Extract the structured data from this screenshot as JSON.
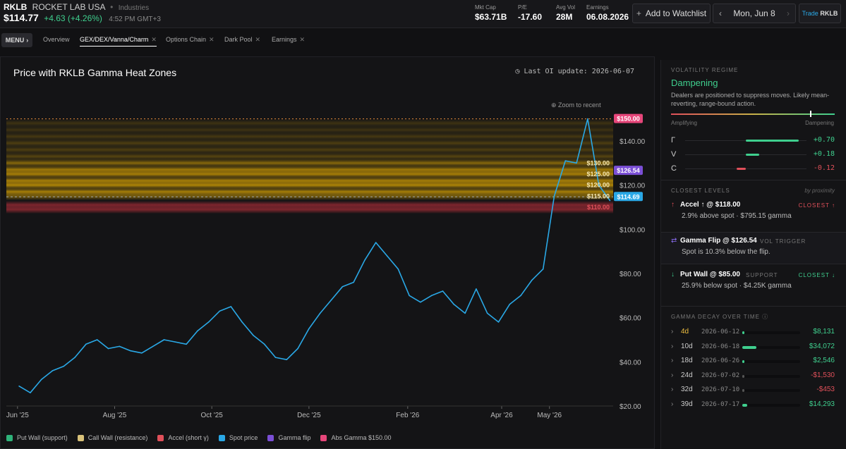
{
  "header": {
    "symbol": "RKLB",
    "name": "ROCKET LAB USA",
    "sector": "Industries",
    "price": "$114.77",
    "change": "+4.63 (+4.26%)",
    "time": "4:52 PM GMT+3",
    "stats": [
      {
        "label": "Mkt Cap",
        "value": "$63.71B"
      },
      {
        "label": "P/E",
        "value": "-17.60"
      },
      {
        "label": "Avg Vol",
        "value": "28M"
      },
      {
        "label": "Earnings",
        "value": "06.08.2026"
      }
    ],
    "watchlist_label": "Add to Watchlist",
    "date_label": "Mon, Jun 8",
    "trade_prefix": "Trade",
    "trade_symbol": "RKLB"
  },
  "tabs": {
    "menu_label": "MENU",
    "items": [
      {
        "label": "Overview"
      },
      {
        "label": "GEX/DEX/Vanna/Charm"
      },
      {
        "label": "Options Chain"
      },
      {
        "label": "Dark Pool"
      },
      {
        "label": "Earnings"
      }
    ]
  },
  "chart": {
    "title": "Price with RKLB Gamma Heat Zones",
    "oi_update": "Last OI update: 2026-06-07",
    "zoom_label": "Zoom to recent"
  },
  "legend": [
    {
      "label": "Put Wall (support)",
      "color": "#2fb37a"
    },
    {
      "label": "Call Wall (resistance)",
      "color": "#d9c27a"
    },
    {
      "label": "Accel (short γ)",
      "color": "#e0505a"
    },
    {
      "label": "Spot price",
      "color": "#2aa8e6"
    },
    {
      "label": "Gamma flip",
      "color": "#7b4fd6"
    },
    {
      "label": "Abs Gamma $150.00",
      "color": "#e6467a"
    }
  ],
  "chart_data": {
    "type": "line",
    "title": "Price with RKLB Gamma Heat Zones",
    "xlabel": "",
    "ylabel": "",
    "ylim": [
      20,
      162
    ],
    "y_ticks": [
      "$20.00",
      "$40.00",
      "$60.00",
      "$80.00",
      "$100.00",
      "$120.00",
      "$140.00"
    ],
    "x_ticks": [
      "Jun '25",
      "Aug '25",
      "Oct '25",
      "Dec '25",
      "Feb '26",
      "Apr '26",
      "May '26"
    ],
    "series": [
      {
        "name": "Spot price",
        "color": "#2aa8e6",
        "x": [
          "2025-06-02",
          "2025-06-09",
          "2025-06-16",
          "2025-06-23",
          "2025-06-30",
          "2025-07-07",
          "2025-07-14",
          "2025-07-21",
          "2025-07-28",
          "2025-08-04",
          "2025-08-11",
          "2025-08-18",
          "2025-08-25",
          "2025-09-01",
          "2025-09-08",
          "2025-09-15",
          "2025-09-22",
          "2025-09-29",
          "2025-10-06",
          "2025-10-13",
          "2025-10-20",
          "2025-10-27",
          "2025-11-03",
          "2025-11-10",
          "2025-11-17",
          "2025-11-24",
          "2025-12-01",
          "2025-12-08",
          "2025-12-15",
          "2025-12-22",
          "2025-12-29",
          "2026-01-05",
          "2026-01-12",
          "2026-01-19",
          "2026-01-26",
          "2026-02-02",
          "2026-02-09",
          "2026-02-16",
          "2026-02-23",
          "2026-03-02",
          "2026-03-09",
          "2026-03-16",
          "2026-03-23",
          "2026-03-30",
          "2026-04-06",
          "2026-04-13",
          "2026-04-20",
          "2026-04-27",
          "2026-05-04",
          "2026-05-11",
          "2026-05-18",
          "2026-05-25",
          "2026-06-01",
          "2026-06-08"
        ],
        "y": [
          29,
          26,
          32,
          36,
          38,
          42,
          48,
          50,
          46,
          47,
          45,
          44,
          47,
          50,
          49,
          48,
          54,
          58,
          63,
          65,
          58,
          52,
          48,
          42,
          41,
          46,
          55,
          62,
          68,
          74,
          76,
          86,
          94,
          88,
          82,
          70,
          67,
          70,
          72,
          66,
          62,
          73,
          62,
          58,
          66,
          70,
          77,
          82,
          115,
          131,
          130,
          150,
          120,
          113
        ]
      }
    ],
    "levels": [
      {
        "label": "$150.00",
        "value": 150,
        "kind": "Abs Gamma",
        "color": "#e6467a"
      },
      {
        "label": "$130.00",
        "value": 130,
        "kind": "Call Wall",
        "color": "#f0b400"
      },
      {
        "label": "$126.54",
        "value": 126.54,
        "kind": "Gamma flip",
        "color": "#7b4fd6"
      },
      {
        "label": "$125.00",
        "value": 125,
        "kind": "Call Wall",
        "color": "#f0b400"
      },
      {
        "label": "$120.00",
        "value": 120,
        "kind": "Call Wall",
        "color": "#f0b400"
      },
      {
        "label": "$115.00",
        "value": 115,
        "kind": "Call Wall",
        "color": "#f0b400"
      },
      {
        "label": "$114.69",
        "value": 114.69,
        "kind": "Spot price",
        "color": "#2aa8e6"
      },
      {
        "label": "$110.00",
        "value": 110,
        "kind": "Accel",
        "color": "#e0505a"
      }
    ],
    "legend_position": "bottom",
    "grid": false
  },
  "side": {
    "regime_header": "VOLATILITY REGIME",
    "regime_value": "Dampening",
    "regime_desc": "Dealers are positioned to suppress moves. Likely mean-reverting, range-bound action.",
    "regime_level": 0.85,
    "amplifying_label": "Amplifying",
    "dampening_label": "Dampening",
    "greeks": [
      {
        "symbol": "Γ",
        "value": "+0.70",
        "num": 0.7,
        "color": "#3fcf8e"
      },
      {
        "symbol": "V",
        "value": "+0.18",
        "num": 0.18,
        "color": "#3fcf8e"
      },
      {
        "symbol": "C",
        "value": "-0.12",
        "num": -0.12,
        "color": "#e0505a"
      }
    ],
    "closest_header": "CLOSEST LEVELS",
    "by_proximity": "by proximity",
    "levels": [
      {
        "title": "Accel ↑ @ $118.00",
        "tag": "CLOSEST ↑",
        "tag_color": "#e0505a",
        "desc": "2.9% above spot · $795.15 gamma",
        "icon": "↑",
        "icon_color": "#e0505a"
      },
      {
        "title": "Gamma Flip @ $126.54",
        "tag": "VOL TRIGGER",
        "tag_color": "#777",
        "desc": "Spot is 10.3% below the flip.",
        "icon": "⇄",
        "icon_color": "#8a6cf0"
      },
      {
        "title": "Put Wall @ $85.00",
        "tag": "SUPPORT",
        "tag_color": "#777",
        "tag2": "CLOSEST ↓",
        "desc": "25.9% below spot · $4.25K gamma",
        "icon": "↓",
        "icon_color": "#3fcf8e"
      }
    ],
    "decay_header": "GAMMA DECAY OVER TIME",
    "decay": [
      {
        "days": "4d",
        "date": "2026-06-12",
        "value": "$8,131",
        "frac": 0.04,
        "pos": true,
        "highlight": true
      },
      {
        "days": "10d",
        "date": "2026-06-18",
        "value": "$34,072",
        "frac": 0.24,
        "pos": true
      },
      {
        "days": "18d",
        "date": "2026-06-26",
        "value": "$2,546",
        "frac": 0.02,
        "pos": true
      },
      {
        "days": "24d",
        "date": "2026-07-02",
        "value": "-$1,530",
        "frac": 0.01,
        "pos": false
      },
      {
        "days": "32d",
        "date": "2026-07-10",
        "value": "-$453",
        "frac": 0.005,
        "pos": false
      },
      {
        "days": "39d",
        "date": "2026-07-17",
        "value": "$14,293",
        "frac": 0.09,
        "pos": true
      }
    ]
  }
}
